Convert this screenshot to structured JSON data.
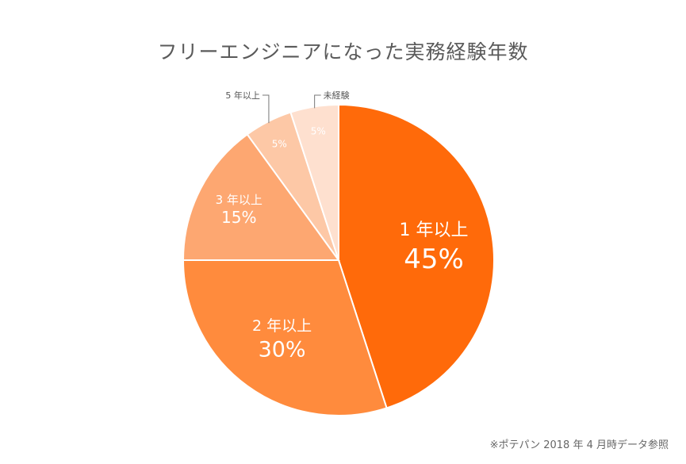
{
  "colors": {
    "slice_1": "#ff6a0a",
    "slice_2": "#ff8b3d",
    "slice_3": "#fda771",
    "slice_4": "#fdc8a6",
    "slice_5": "#fee0cf",
    "title_text": "#5a5a5a"
  },
  "chart_data": {
    "type": "pie",
    "title": "フリーエンジニアになった実務経験年数",
    "categories": [
      "1 年以上",
      "2 年以上",
      "3 年以上",
      "5 年以上",
      "未経験"
    ],
    "values": [
      45,
      30,
      15,
      5,
      5
    ],
    "value_labels": [
      "45%",
      "30%",
      "15%",
      "5%",
      "5%"
    ],
    "legend": "none",
    "note": "※ポテパン 2018 年 4 月時データ参照"
  }
}
